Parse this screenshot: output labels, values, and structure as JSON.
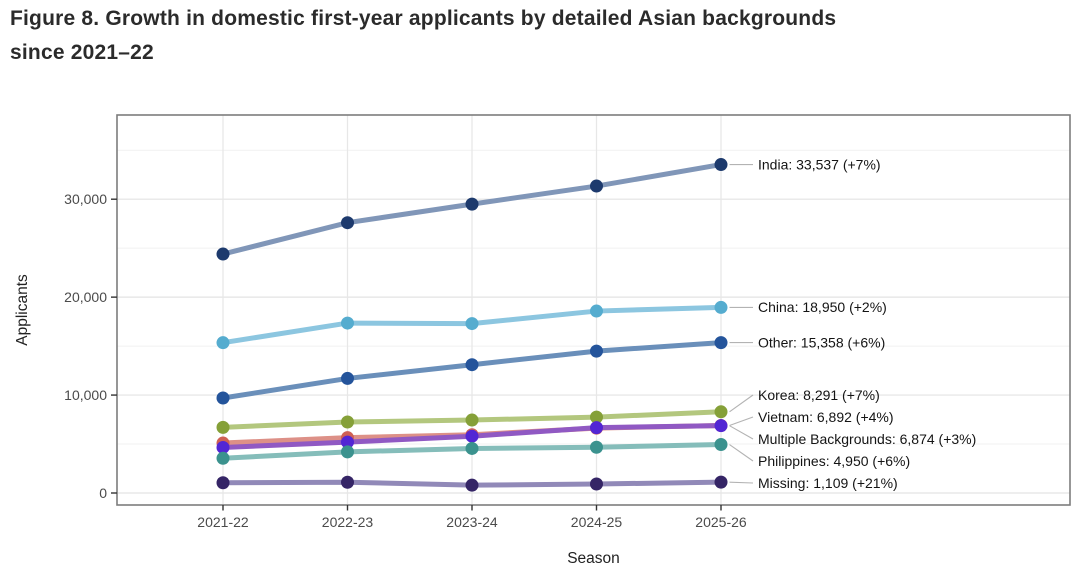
{
  "figure": {
    "title_line1": "Figure 8. Growth in domestic first-year applicants by detailed Asian backgrounds",
    "title_line2": "since 2021–22"
  },
  "chart_data": {
    "type": "line",
    "x": [
      "2021-22",
      "2022-23",
      "2023-24",
      "2024-25",
      "2025-26"
    ],
    "xlabel": "Season",
    "ylabel": "Applicants",
    "ylim": [
      0,
      38500
    ],
    "yticks": [
      0,
      10000,
      20000,
      30000
    ],
    "yticks_minor": [
      5000,
      15000,
      25000,
      35000
    ],
    "grid": true,
    "legend_position": "end-of-line-labels",
    "colors": {
      "panel_border": "#7d7d7d",
      "gridline_major": "#e3e3e3",
      "gridline_minor": "#f1f1f1",
      "gridline_vertical": "#e7e7e7",
      "leader_line": "#b3b3b3",
      "tick": "#333333",
      "tick_label": "#4b4b4b",
      "axis_title": "#222222",
      "end_label_text": "#141414"
    },
    "series": [
      {
        "name": "India",
        "values": [
          24400,
          27600,
          29500,
          31343,
          33537
        ],
        "end_label": "India: 33,537 (+7%)",
        "line_color": "#8096b8",
        "dot_color": "#1d3a6d"
      },
      {
        "name": "China",
        "values": [
          15350,
          17350,
          17300,
          18578,
          18950
        ],
        "end_label": "China: 18,950 (+2%)",
        "line_color": "#8cc6e0",
        "dot_color": "#55accf"
      },
      {
        "name": "Other",
        "values": [
          9700,
          11700,
          13100,
          14489,
          15358
        ],
        "end_label": "Other: 15,358 (+6%)",
        "line_color": "#6a8fba",
        "dot_color": "#24549b"
      },
      {
        "name": "Korea",
        "values": [
          6700,
          7250,
          7450,
          7748,
          8291
        ],
        "end_label": "Korea: 8,291 (+7%)",
        "line_color": "#b3c77e",
        "dot_color": "#85a038"
      },
      {
        "name": "Vietnam",
        "values": [
          5100,
          5650,
          5950,
          6627,
          6892
        ],
        "end_label": "Vietnam: 6,892 (+4%)",
        "line_color": "#dd9087",
        "dot_color": "#cf6054"
      },
      {
        "name": "Multiple Backgrounds",
        "values": [
          4650,
          5200,
          5800,
          6674,
          6874
        ],
        "end_label": "Multiple Backgrounds: 6,874 (+3%)",
        "line_color": "#9059c3",
        "dot_color": "#5226d4"
      },
      {
        "name": "Philippines",
        "values": [
          3550,
          4200,
          4550,
          4670,
          4950
        ],
        "end_label": "Philippines: 4,950 (+6%)",
        "line_color": "#85bdba",
        "dot_color": "#3b928e"
      },
      {
        "name": "Missing",
        "values": [
          1050,
          1100,
          800,
          917,
          1109
        ],
        "end_label": "Missing: 1,109 (+21%)",
        "line_color": "#9189b8",
        "dot_color": "#352566"
      }
    ]
  }
}
